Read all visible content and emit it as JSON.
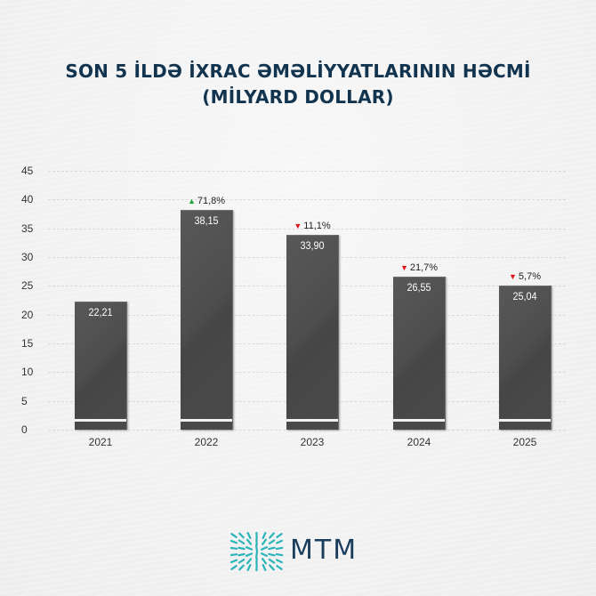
{
  "header": {
    "title_line1": "SON 5 İLDƏ İXRAC ƏMƏLİYYATLARININ HƏCMİ",
    "title_line2": "(MİLYARD DOLLAR)"
  },
  "footer": {
    "logo_text": "MTM",
    "logo_icon": "radial-dash-grid-icon"
  },
  "colors": {
    "title": "#12344f",
    "bar": "#4a4a4a",
    "increase": "#1fa43a",
    "decrease": "#e01515",
    "logo_teal": "#2ab3b8",
    "logo_text": "#1a3d5c"
  },
  "chart_data": {
    "type": "bar",
    "title": "SON 5 İLDƏ İXRAC ƏMƏLİYYATLARININ HƏCMİ (MİLYARD DOLLAR)",
    "xlabel": "",
    "ylabel": "",
    "categories": [
      "2021",
      "2022",
      "2023",
      "2024",
      "2025"
    ],
    "values": [
      22.21,
      38.15,
      33.9,
      26.55,
      25.04
    ],
    "value_labels": [
      "22,21",
      "38,15",
      "33,90",
      "26,55",
      "25,04"
    ],
    "changes": [
      null,
      {
        "direction": "up",
        "label": "71,8%"
      },
      {
        "direction": "down",
        "label": "11,1%"
      },
      {
        "direction": "down",
        "label": "21,7%"
      },
      {
        "direction": "down",
        "label": "5,7%"
      }
    ],
    "ylim": [
      0,
      45
    ],
    "yticks": [
      "0",
      "5",
      "10",
      "15",
      "20",
      "25",
      "30",
      "35",
      "40",
      "45"
    ],
    "grid": true,
    "legend": null
  }
}
